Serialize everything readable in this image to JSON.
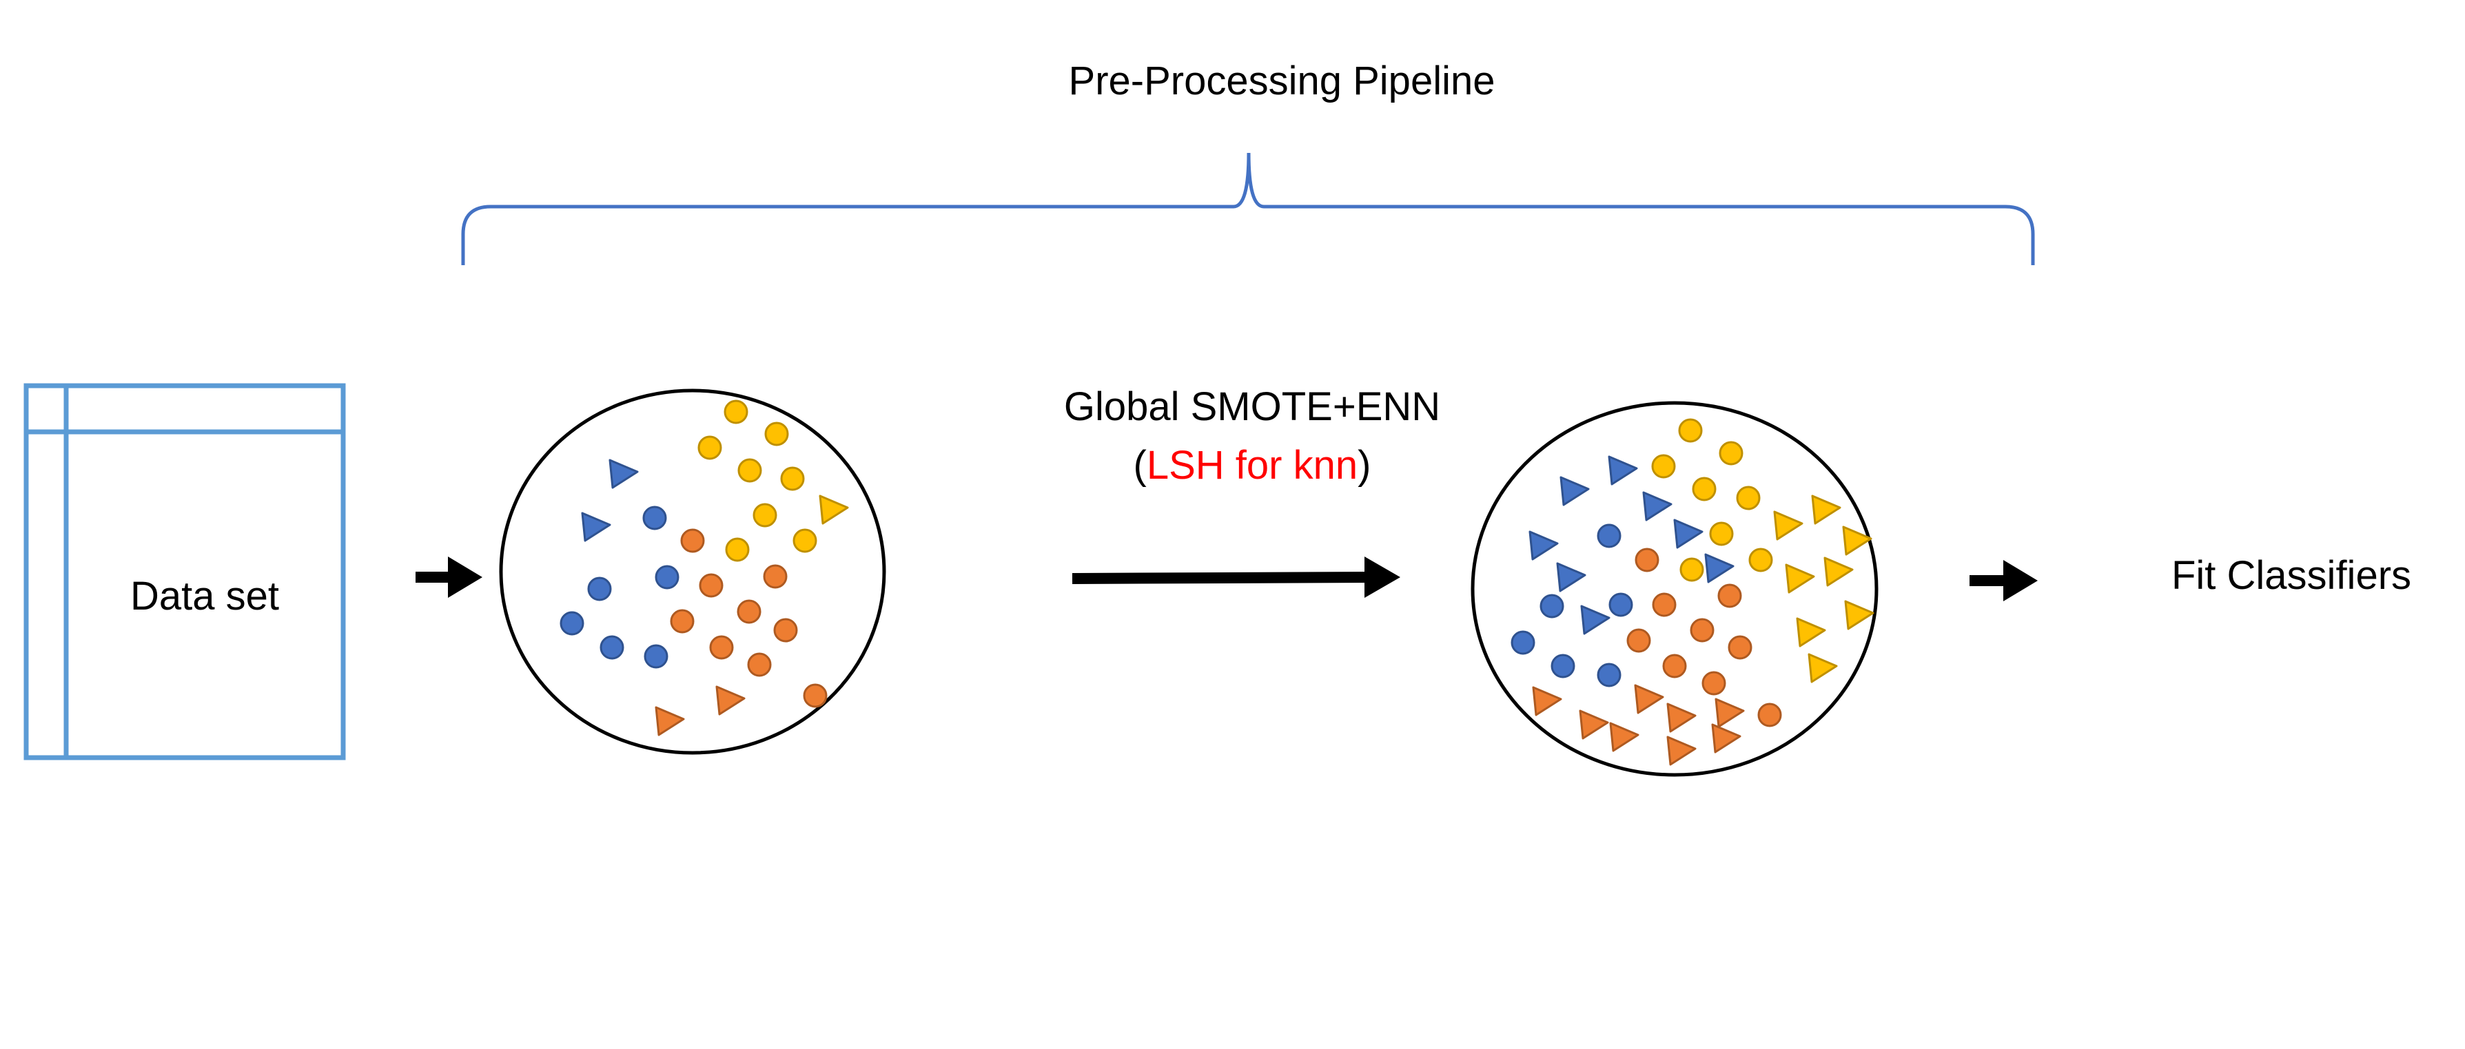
{
  "title": "Pre-Processing Pipeline",
  "dataset_label": "Data set",
  "process": {
    "line1": "Global SMOTE+ENN",
    "paren_open": "(",
    "method": "LSH for knn",
    "paren_close": ")"
  },
  "output_label": "Fit Classifiers",
  "colors": {
    "bracket": "#4472c4",
    "table": "#5b9bd5",
    "blue": "#4472c4",
    "orange": "#ed7d31",
    "yellow": "#ffc000",
    "method_text": "#ff0000",
    "arrow": "#000000"
  }
}
